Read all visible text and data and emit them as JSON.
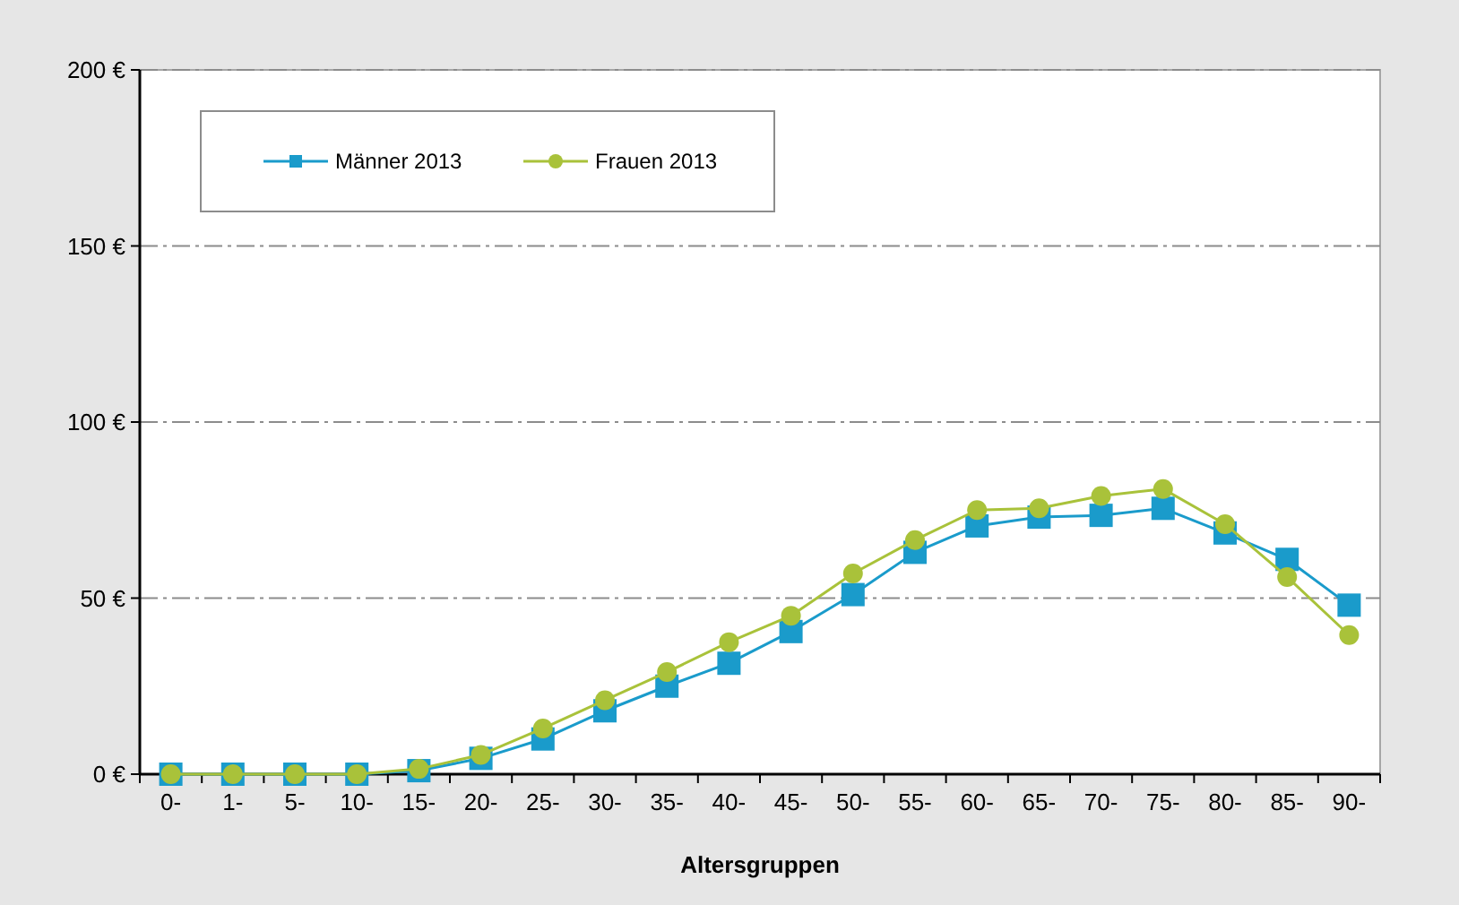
{
  "chart_data": {
    "type": "line",
    "xlabel": "Altersgruppen",
    "categories": [
      "0-",
      "1-",
      "5-",
      "10-",
      "15-",
      "20-",
      "25-",
      "30-",
      "35-",
      "40-",
      "45-",
      "50-",
      "55-",
      "60-",
      "65-",
      "70-",
      "75-",
      "80-",
      "85-",
      "90-"
    ],
    "series": [
      {
        "name": "Männer 2013",
        "color": "#1a9bcb",
        "marker": "square",
        "values": [
          0,
          0,
          0,
          0,
          1,
          4.5,
          10,
          18,
          25,
          31.5,
          40.5,
          51,
          63,
          70.5,
          73,
          73.5,
          75.5,
          68.5,
          61,
          48
        ]
      },
      {
        "name": "Frauen 2013",
        "color": "#a9c23a",
        "marker": "circle",
        "values": [
          0,
          0,
          0,
          0,
          1.5,
          5.5,
          13,
          21,
          29,
          37.5,
          45,
          57,
          66.5,
          75,
          75.5,
          79,
          81,
          71,
          56,
          39.5
        ]
      }
    ],
    "ylim": [
      0,
      200
    ],
    "yticks": [
      {
        "value": 0,
        "label": "0 €"
      },
      {
        "value": 50,
        "label": "50 €"
      },
      {
        "value": 100,
        "label": "100 €"
      },
      {
        "value": 150,
        "label": "150 €"
      },
      {
        "value": 200,
        "label": "200 €"
      }
    ],
    "grid": "y",
    "legend": "top left"
  }
}
